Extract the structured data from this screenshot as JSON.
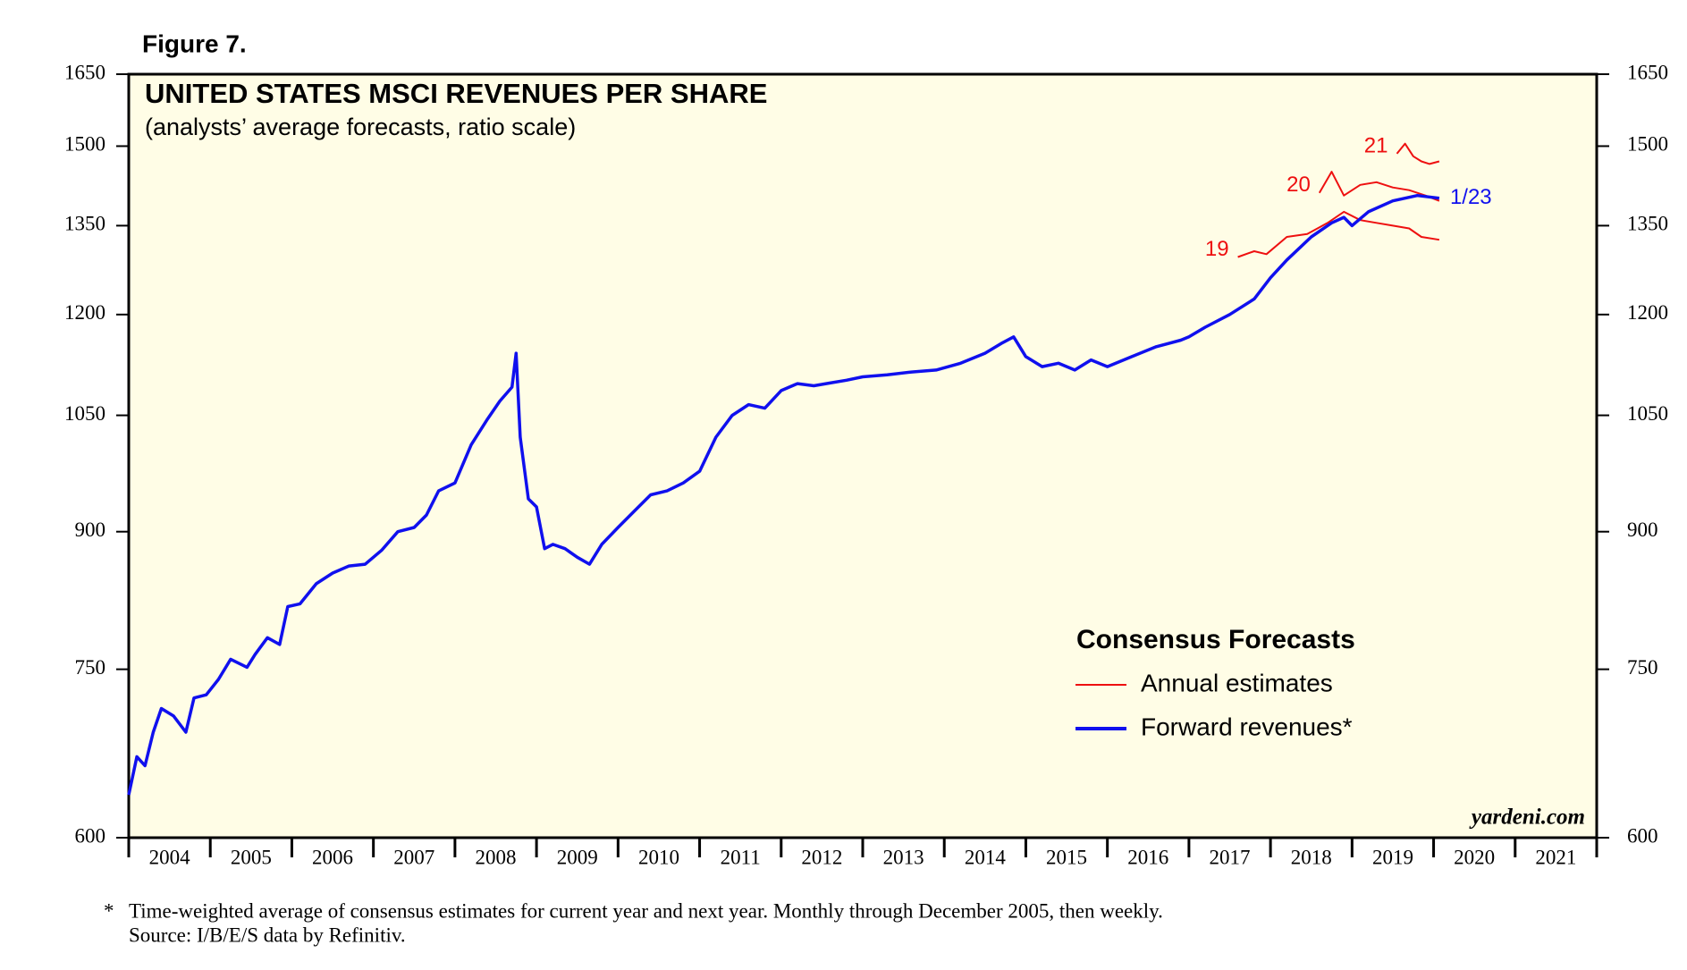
{
  "figure_label": "Figure 7.",
  "chart_data": {
    "type": "line",
    "title": "UNITED STATES MSCI REVENUES PER SHARE",
    "subtitle": "(analysts’ average forecasts, ratio scale)",
    "log_scale": true,
    "background": "#fffde6",
    "xlim": [
      2004,
      2022
    ],
    "xticks": [
      2004,
      2005,
      2006,
      2007,
      2008,
      2009,
      2010,
      2011,
      2012,
      2013,
      2014,
      2015,
      2016,
      2017,
      2018,
      2019,
      2020,
      2021
    ],
    "ylim": [
      600,
      1650
    ],
    "yticks": [
      600,
      750,
      900,
      1050,
      1200,
      1350,
      1500,
      1650
    ],
    "series": [
      {
        "name": "Forward revenues*",
        "color": "#1010ee",
        "width": 3.5,
        "end_label": "1/23",
        "x": [
          2004.0,
          2004.1,
          2004.2,
          2004.3,
          2004.4,
          2004.55,
          2004.7,
          2004.8,
          2004.95,
          2005.1,
          2005.25,
          2005.45,
          2005.55,
          2005.7,
          2005.85,
          2005.95,
          2006.1,
          2006.3,
          2006.5,
          2006.7,
          2006.9,
          2007.1,
          2007.3,
          2007.5,
          2007.65,
          2007.8,
          2008.0,
          2008.2,
          2008.4,
          2008.55,
          2008.7,
          2008.75,
          2008.8,
          2008.9,
          2009.0,
          2009.1,
          2009.2,
          2009.35,
          2009.5,
          2009.65,
          2009.8,
          2010.0,
          2010.2,
          2010.4,
          2010.6,
          2010.8,
          2011.0,
          2011.2,
          2011.4,
          2011.6,
          2011.8,
          2012.0,
          2012.2,
          2012.4,
          2012.6,
          2012.8,
          2013.0,
          2013.3,
          2013.6,
          2013.9,
          2014.2,
          2014.5,
          2014.7,
          2014.85,
          2015.0,
          2015.2,
          2015.4,
          2015.6,
          2015.8,
          2016.0,
          2016.3,
          2016.6,
          2016.9,
          2017.0,
          2017.2,
          2017.5,
          2017.8,
          2018.0,
          2018.2,
          2018.5,
          2018.75,
          2018.9,
          2019.0,
          2019.2,
          2019.5,
          2019.8,
          2020.07
        ],
        "values": [
          635,
          668,
          660,
          690,
          712,
          705,
          690,
          722,
          725,
          740,
          760,
          752,
          765,
          782,
          775,
          815,
          818,
          840,
          852,
          860,
          862,
          878,
          900,
          905,
          920,
          950,
          960,
          1010,
          1045,
          1070,
          1090,
          1140,
          1020,
          940,
          930,
          880,
          885,
          880,
          870,
          862,
          885,
          905,
          925,
          945,
          950,
          960,
          975,
          1020,
          1050,
          1065,
          1060,
          1085,
          1095,
          1092,
          1096,
          1100,
          1105,
          1108,
          1112,
          1115,
          1125,
          1140,
          1155,
          1165,
          1135,
          1120,
          1125,
          1115,
          1130,
          1120,
          1135,
          1150,
          1160,
          1165,
          1180,
          1200,
          1225,
          1260,
          1290,
          1330,
          1355,
          1365,
          1350,
          1375,
          1395,
          1405,
          1400
        ]
      },
      {
        "name": "19",
        "color": "#ee1010",
        "width": 2,
        "x": [
          2017.6,
          2017.8,
          2017.95,
          2018.2,
          2018.45,
          2018.7,
          2018.9,
          2019.1,
          2019.3,
          2019.5,
          2019.7,
          2019.85,
          2020.07
        ],
        "values": [
          1295,
          1305,
          1300,
          1330,
          1335,
          1355,
          1375,
          1360,
          1355,
          1350,
          1345,
          1330,
          1325
        ]
      },
      {
        "name": "20",
        "color": "#ee1010",
        "width": 2,
        "x": [
          2018.6,
          2018.75,
          2018.9,
          2019.1,
          2019.3,
          2019.5,
          2019.7,
          2019.9,
          2020.07
        ],
        "values": [
          1410,
          1450,
          1405,
          1425,
          1430,
          1420,
          1415,
          1405,
          1395
        ]
      },
      {
        "name": "21",
        "color": "#ee1010",
        "width": 2,
        "x": [
          2019.55,
          2019.65,
          2019.75,
          2019.85,
          2019.95,
          2020.07
        ],
        "values": [
          1485,
          1505,
          1480,
          1470,
          1465,
          1470
        ]
      }
    ],
    "legend": {
      "title": "Consensus Forecasts",
      "entries": [
        {
          "name": "Annual estimates",
          "color": "#ee1010"
        },
        {
          "name": "Forward revenues*",
          "color": "#1010ee"
        }
      ]
    },
    "watermark": "yardeni.com"
  },
  "footnote": [
    "Time-weighted average of consensus estimates for current year and next year. Monthly through December 2005, then weekly.",
    "Source: I/B/E/S data by Refinitiv."
  ],
  "footnote_marker": "*"
}
